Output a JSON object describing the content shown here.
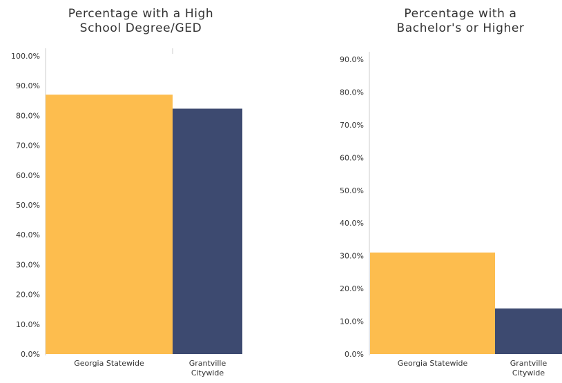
{
  "colors": {
    "georgia": "#FDBD4E",
    "grantville": "#3D4A70",
    "text": "#333333",
    "axis": "#CCCCCC"
  },
  "chart_data": [
    {
      "type": "bar",
      "title_lines": [
        "Percentage with a High",
        "School Degree/GED"
      ],
      "categories": [
        "Georgia Statewide",
        "Grantville Citywide"
      ],
      "category_label_lines": [
        [
          "Georgia Statewide"
        ],
        [
          "Grantville",
          "Citywide"
        ]
      ],
      "values": [
        87.0,
        82.3
      ],
      "ylim": [
        0,
        100
      ],
      "ticks": [
        0,
        10,
        20,
        30,
        40,
        50,
        60,
        70,
        80,
        90,
        100
      ],
      "tick_labels": [
        "0.0%",
        "10.0%",
        "20.0%",
        "30.0%",
        "40.0%",
        "50.0%",
        "60.0%",
        "70.0%",
        "80.0%",
        "90.0%",
        "100.0%"
      ],
      "xlabel": "",
      "ylabel": "",
      "grid": false
    },
    {
      "type": "bar",
      "title_lines": [
        "Percentage with a",
        "Bachelor's or Higher"
      ],
      "categories": [
        "Georgia Statewide",
        "Grantville Citywide"
      ],
      "category_label_lines": [
        [
          "Georgia Statewide"
        ],
        [
          "Grantville",
          "Citywide"
        ]
      ],
      "values": [
        31.0,
        13.9
      ],
      "ylim": [
        0,
        90
      ],
      "ticks": [
        0,
        10,
        20,
        30,
        40,
        50,
        60,
        70,
        80,
        90
      ],
      "tick_labels": [
        "0.0%",
        "10.0%",
        "20.0%",
        "30.0%",
        "40.0%",
        "50.0%",
        "60.0%",
        "70.0%",
        "80.0%",
        "90.0%"
      ],
      "xlabel": "",
      "ylabel": "",
      "grid": false
    }
  ]
}
